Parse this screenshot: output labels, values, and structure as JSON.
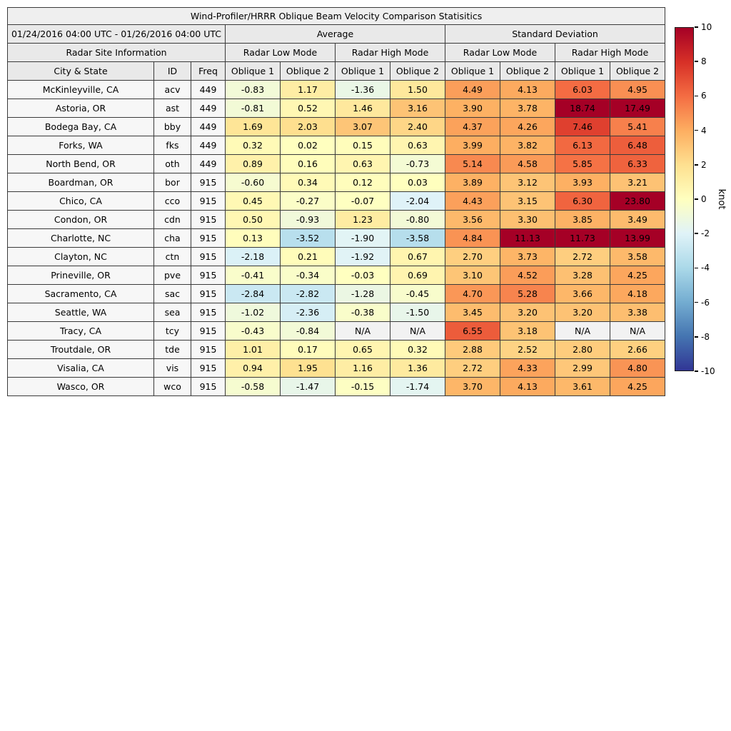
{
  "header": {
    "date_range": "01/24/2016 04:00 UTC - 01/26/2016 04:00 UTC",
    "group_average": "Average",
    "group_std": "Standard Deviation",
    "site_info": "Radar Site Information",
    "low_mode": "Radar Low Mode",
    "high_mode": "Radar High Mode",
    "city_state": "City & State",
    "id": "ID",
    "freq": "Freq",
    "oblique1": "Oblique 1",
    "oblique2": "Oblique 2"
  },
  "chart_data": {
    "type": "heatmap",
    "title": "Wind-Profiler/HRRR Oblique Beam Velocity Comparison Statisitics",
    "columns": [
      "City & State",
      "ID",
      "Freq",
      "Avg Low Oblique 1",
      "Avg Low Oblique 2",
      "Avg High Oblique 1",
      "Avg High Oblique 2",
      "Std Low Oblique 1",
      "Std Low Oblique 2",
      "Std High Oblique 1",
      "Std High Oblique 2"
    ],
    "rows": [
      {
        "city": "McKinleyville, CA",
        "id": "acv",
        "freq": "449",
        "values": [
          "-0.83",
          "1.17",
          "-1.36",
          "1.50",
          "4.49",
          "4.13",
          "6.03",
          "4.95"
        ]
      },
      {
        "city": "Astoria, OR",
        "id": "ast",
        "freq": "449",
        "values": [
          "-0.81",
          "0.52",
          "1.46",
          "3.16",
          "3.90",
          "3.78",
          "18.74",
          "17.49"
        ]
      },
      {
        "city": "Bodega Bay, CA",
        "id": "bby",
        "freq": "449",
        "values": [
          "1.69",
          "2.03",
          "3.07",
          "2.40",
          "4.37",
          "4.26",
          "7.46",
          "5.41"
        ]
      },
      {
        "city": "Forks, WA",
        "id": "fks",
        "freq": "449",
        "values": [
          "0.32",
          "0.02",
          "0.15",
          "0.63",
          "3.99",
          "3.82",
          "6.13",
          "6.48"
        ]
      },
      {
        "city": "North Bend, OR",
        "id": "oth",
        "freq": "449",
        "values": [
          "0.89",
          "0.16",
          "0.63",
          "-0.73",
          "5.14",
          "4.58",
          "5.85",
          "6.33"
        ]
      },
      {
        "city": "Boardman, OR",
        "id": "bor",
        "freq": "915",
        "values": [
          "-0.60",
          "0.34",
          "0.12",
          "0.03",
          "3.89",
          "3.12",
          "3.93",
          "3.21"
        ]
      },
      {
        "city": "Chico, CA",
        "id": "cco",
        "freq": "915",
        "values": [
          "0.45",
          "-0.27",
          "-0.07",
          "-2.04",
          "4.43",
          "3.15",
          "6.30",
          "23.80"
        ]
      },
      {
        "city": "Condon, OR",
        "id": "cdn",
        "freq": "915",
        "values": [
          "0.50",
          "-0.93",
          "1.23",
          "-0.80",
          "3.56",
          "3.30",
          "3.85",
          "3.49"
        ]
      },
      {
        "city": "Charlotte, NC",
        "id": "cha",
        "freq": "915",
        "values": [
          "0.13",
          "-3.52",
          "-1.90",
          "-3.58",
          "4.84",
          "11.13",
          "11.73",
          "13.99"
        ]
      },
      {
        "city": "Clayton, NC",
        "id": "ctn",
        "freq": "915",
        "values": [
          "-2.18",
          "0.21",
          "-1.92",
          "0.67",
          "2.70",
          "3.73",
          "2.72",
          "3.58"
        ]
      },
      {
        "city": "Prineville, OR",
        "id": "pve",
        "freq": "915",
        "values": [
          "-0.41",
          "-0.34",
          "-0.03",
          "0.69",
          "3.10",
          "4.52",
          "3.28",
          "4.25"
        ]
      },
      {
        "city": "Sacramento, CA",
        "id": "sac",
        "freq": "915",
        "values": [
          "-2.84",
          "-2.82",
          "-1.28",
          "-0.45",
          "4.70",
          "5.28",
          "3.66",
          "4.18"
        ]
      },
      {
        "city": "Seattle, WA",
        "id": "sea",
        "freq": "915",
        "values": [
          "-1.02",
          "-2.36",
          "-0.38",
          "-1.50",
          "3.45",
          "3.20",
          "3.20",
          "3.38"
        ]
      },
      {
        "city": "Tracy, CA",
        "id": "tcy",
        "freq": "915",
        "values": [
          "-0.43",
          "-0.84",
          "N/A",
          "N/A",
          "6.55",
          "3.18",
          "N/A",
          "N/A"
        ]
      },
      {
        "city": "Troutdale, OR",
        "id": "tde",
        "freq": "915",
        "values": [
          "1.01",
          "0.17",
          "0.65",
          "0.32",
          "2.88",
          "2.52",
          "2.80",
          "2.66"
        ]
      },
      {
        "city": "Visalia, CA",
        "id": "vis",
        "freq": "915",
        "values": [
          "0.94",
          "1.95",
          "1.16",
          "1.36",
          "2.72",
          "4.33",
          "2.99",
          "4.80"
        ]
      },
      {
        "city": "Wasco, OR",
        "id": "wco",
        "freq": "915",
        "values": [
          "-0.58",
          "-1.47",
          "-0.15",
          "-1.74",
          "3.70",
          "4.13",
          "3.61",
          "4.25"
        ]
      }
    ],
    "colorbar": {
      "label": "knot",
      "min": -10,
      "max": 10,
      "ticks": [
        10,
        8,
        6,
        4,
        2,
        0,
        -2,
        -4,
        -6,
        -8,
        -10
      ],
      "stops": [
        {
          "v": -10,
          "color": "#313695"
        },
        {
          "v": -8,
          "color": "#4575b1"
        },
        {
          "v": -6,
          "color": "#74add1"
        },
        {
          "v": -4,
          "color": "#abd9e9"
        },
        {
          "v": -2,
          "color": "#e0f3f8"
        },
        {
          "v": 0,
          "color": "#ffffbf"
        },
        {
          "v": 2,
          "color": "#fee090"
        },
        {
          "v": 4,
          "color": "#fdae61"
        },
        {
          "v": 6,
          "color": "#f46d43"
        },
        {
          "v": 8,
          "color": "#d73027"
        },
        {
          "v": 10,
          "color": "#a50026"
        }
      ]
    },
    "colors": {
      "header_bg": "#e9e9e9",
      "site_cell_bg": "#f7f7f7",
      "na_cell_bg": "#f2f2f2",
      "border": "#3a3a3a"
    }
  }
}
